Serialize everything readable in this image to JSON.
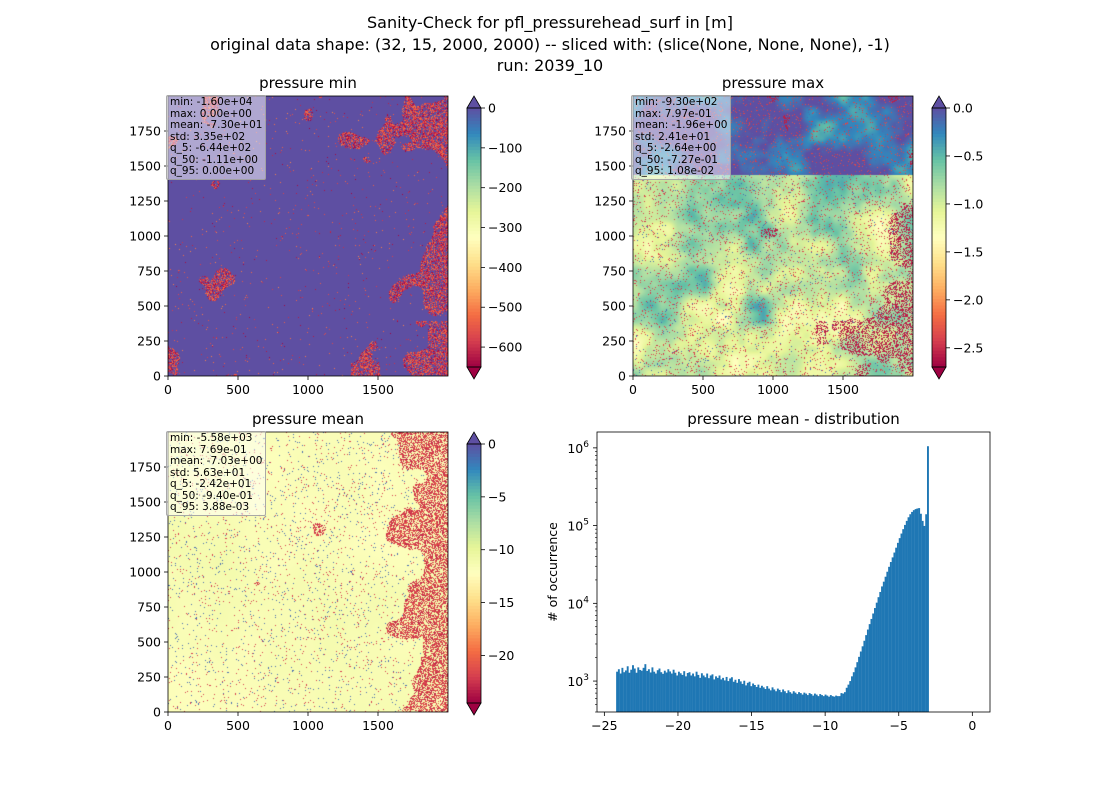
{
  "title": {
    "line1": "Sanity-Check for pfl_pressurehead_surf in [m]",
    "line2": "original data shape: (32, 15, 2000, 2000) -- sliced with: (slice(None, None, None), -1)",
    "line3": "run: 2039_10"
  },
  "colors": {
    "spectral": [
      "#9e0142",
      "#d53e4f",
      "#f46d43",
      "#fdae61",
      "#fee08b",
      "#ffffbf",
      "#e6f598",
      "#abdda4",
      "#66c2a5",
      "#3288bd",
      "#5e4fa2"
    ],
    "hist_bar": "#1f77b4"
  },
  "chart_data": [
    {
      "type": "heatmap",
      "title": "pressure min",
      "xlim": [
        0,
        2000
      ],
      "ylim": [
        0,
        2000
      ],
      "xticks": [
        0,
        500,
        1000,
        1500
      ],
      "yticks": [
        0,
        250,
        500,
        750,
        1000,
        1250,
        1500,
        1750
      ],
      "colorbar": {
        "range": [
          -650,
          0
        ],
        "ticks": [
          0,
          -100,
          -200,
          -300,
          -400,
          -500,
          -600
        ],
        "extend": "both"
      },
      "stats": [
        "min: -1.60e+04",
        "max: 0.00e+00",
        "mean: -7.30e+01",
        "std: 3.35e+02",
        "q_5: -6.44e+02",
        "q_50: -1.11e+00",
        "q_95: 0.00e+00"
      ]
    },
    {
      "type": "heatmap",
      "title": "pressure max",
      "xlim": [
        0,
        2000
      ],
      "ylim": [
        0,
        2000
      ],
      "xticks": [
        0,
        500,
        1000,
        1500
      ],
      "yticks": [
        0,
        250,
        500,
        750,
        1000,
        1250,
        1500,
        1750
      ],
      "colorbar": {
        "range": [
          -2.7,
          0
        ],
        "ticks": [
          0.0,
          -0.5,
          -1.0,
          -1.5,
          -2.0,
          -2.5
        ],
        "tick_labels": [
          "0.0",
          "−0.5",
          "−1.0",
          "−1.5",
          "−2.0",
          "−2.5"
        ],
        "extend": "both"
      },
      "stats": [
        "min: -9.30e+02",
        "max: 7.97e-01",
        "mean: -1.96e+00",
        "std: 2.41e+01",
        "q_5: -2.64e+00",
        "q_50: -7.27e-01",
        "q_95: 1.08e-02"
      ]
    },
    {
      "type": "heatmap",
      "title": "pressure mean",
      "xlim": [
        0,
        2000
      ],
      "ylim": [
        0,
        2000
      ],
      "xticks": [
        0,
        500,
        1000,
        1500
      ],
      "yticks": [
        0,
        250,
        500,
        750,
        1000,
        1250,
        1500,
        1750
      ],
      "colorbar": {
        "range": [
          -24.5,
          0
        ],
        "ticks": [
          0,
          -5,
          -10,
          -15,
          -20
        ],
        "extend": "both"
      },
      "stats": [
        "min: -5.58e+03",
        "max: 7.69e-01",
        "mean: -7.03e+00",
        "std: 5.63e+01",
        "q_5: -2.42e+01",
        "q_50: -9.40e-01",
        "q_95: 3.88e-03"
      ]
    },
    {
      "type": "bar",
      "title": "pressure mean - distribution",
      "xlabel": "",
      "ylabel": "# of occurrence",
      "yscale": "log",
      "xlim": [
        -25.5,
        1.2
      ],
      "ylim": [
        400,
        1600000
      ],
      "xticks": [
        -25,
        -20,
        -15,
        -10,
        -5,
        0
      ],
      "yticks": [
        1000,
        10000,
        100000,
        1000000
      ],
      "bin_width": 0.12,
      "bin_start": -24.2,
      "values": [
        1320,
        1420,
        1250,
        1480,
        1300,
        1370,
        1550,
        1280,
        1400,
        1600,
        1450,
        1280,
        1500,
        1390,
        1360,
        1480,
        1650,
        1350,
        1420,
        1290,
        1500,
        1320,
        1250,
        1380,
        1450,
        1300,
        1240,
        1360,
        1290,
        1420,
        1330,
        1250,
        1400,
        1280,
        1180,
        1320,
        1260,
        1200,
        1340,
        1150,
        1270,
        1300,
        1180,
        1250,
        1150,
        1320,
        1200,
        1100,
        1260,
        1180,
        1120,
        1250,
        1090,
        1180,
        1220,
        1050,
        1150,
        1100,
        1180,
        1050,
        1100,
        1020,
        1130,
        1000,
        1080,
        1120,
        980,
        1040,
        950,
        1060,
        990,
        920,
        1010,
        880,
        950,
        980,
        860,
        930,
        890,
        840,
        900,
        820,
        870,
        830,
        790,
        860,
        800,
        760,
        830,
        780,
        740,
        800,
        770,
        720,
        780,
        740,
        700,
        760,
        720,
        690,
        740,
        710,
        680,
        720,
        700,
        670,
        710,
        690,
        660,
        700,
        680,
        650,
        690,
        670,
        640,
        680,
        660,
        640,
        670,
        650,
        630,
        660,
        640,
        630,
        650,
        640,
        640,
        700,
        690,
        720,
        820,
        900,
        1000,
        1150,
        1300,
        1500,
        1750,
        2050,
        2400,
        2800,
        3300,
        3900,
        4600,
        5400,
        6300,
        7400,
        8700,
        10200,
        12000,
        14000,
        16500,
        19000,
        22000,
        25500,
        29500,
        34000,
        39000,
        45000,
        52000,
        60000,
        69000,
        79000,
        90000,
        102000,
        115000,
        128000,
        140000,
        150000,
        158000,
        163000,
        166000,
        168000,
        142000,
        115000,
        99000,
        140000,
        1050000
      ]
    }
  ]
}
